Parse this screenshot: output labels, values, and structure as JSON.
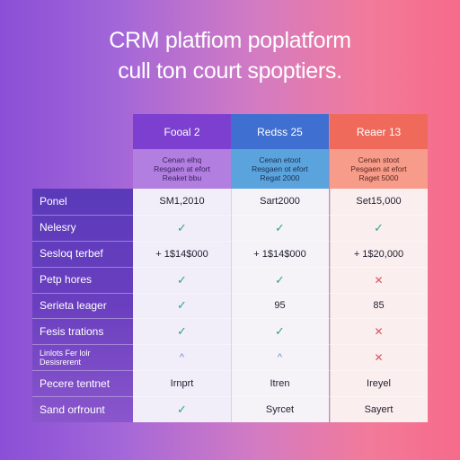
{
  "headline": {
    "line1": "CRM platfiom poplatform",
    "line2": "cull ton court spoptiers."
  },
  "columns": [
    {
      "title": "Fooal 2",
      "sub": [
        "Cenan elhq",
        "Resgaen at efort",
        "Reaket bbu"
      ],
      "accent": "#7c3fcf"
    },
    {
      "title": "Redss 25",
      "sub": [
        "Cenan etoot",
        "Resgaen ot efort",
        "Regat 2000"
      ],
      "accent": "#3f6fd0"
    },
    {
      "title": "Reaer 13",
      "sub": [
        "Cenan stoot",
        "Pesgaen at efort",
        "Raget 5000"
      ],
      "accent": "#f06a5c"
    }
  ],
  "rows": [
    {
      "label": "Ponel",
      "cells": [
        {
          "text": "SM1,2010"
        },
        {
          "text": "Sart2000"
        },
        {
          "text": "Set15,000"
        }
      ]
    },
    {
      "label": "Nelesry",
      "cells": [
        {
          "icon": "check-icon",
          "glyph": "✓"
        },
        {
          "icon": "check-icon",
          "glyph": "✓"
        },
        {
          "icon": "check-icon",
          "glyph": "✓"
        }
      ]
    },
    {
      "label": "Sesloq terbef",
      "cells": [
        {
          "text": "+ 1$14$000"
        },
        {
          "text": "+ 1$14$000"
        },
        {
          "text": "+ 1$20,000"
        }
      ]
    },
    {
      "label": "Petp hores",
      "cells": [
        {
          "icon": "check-icon",
          "glyph": "✓"
        },
        {
          "icon": "check-icon",
          "glyph": "✓"
        },
        {
          "icon": "cross-icon",
          "glyph": "✕"
        }
      ]
    },
    {
      "label": "Serieta leager",
      "cells": [
        {
          "icon": "check-icon",
          "glyph": "✓"
        },
        {
          "text": "95"
        },
        {
          "text": "85"
        }
      ]
    },
    {
      "label": "Fesis trations",
      "cells": [
        {
          "icon": "check-icon",
          "glyph": "✓"
        },
        {
          "icon": "check-icon",
          "glyph": "✓"
        },
        {
          "icon": "cross-icon",
          "glyph": "✕"
        }
      ]
    },
    {
      "label": "Linlots Fer lolr Desisrerent",
      "small": true,
      "cells": [
        {
          "icon": "caret-icon",
          "glyph": "^"
        },
        {
          "icon": "caret-icon",
          "glyph": "^"
        },
        {
          "icon": "cross-icon",
          "glyph": "✕"
        }
      ]
    },
    {
      "label": "Pecere tentnet",
      "cells": [
        {
          "text": "Irnprt"
        },
        {
          "text": "Itren"
        },
        {
          "text": "Ireyel"
        }
      ]
    },
    {
      "label": "Sand orfrount",
      "cells": [
        {
          "icon": "check-icon",
          "glyph": "✓"
        },
        {
          "text": "Syrcet"
        },
        {
          "text": "Sayert"
        }
      ]
    }
  ]
}
